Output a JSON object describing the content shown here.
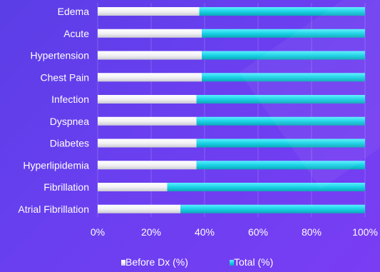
{
  "chart_data": {
    "type": "bar",
    "orientation": "horizontal",
    "stacked": "percent",
    "categories": [
      "Edema",
      "Acute",
      "Hypertension",
      "Chest Pain",
      "Infection",
      "Dyspnea",
      "Diabetes",
      "Hyperlipidemia",
      "Fibrillation",
      "Atrial Fibrillation"
    ],
    "series": [
      {
        "name": "Before Dx (%)",
        "color": "#f0f0f4",
        "values": [
          38,
          39,
          39,
          39,
          37,
          37,
          37,
          37,
          26,
          31
        ]
      },
      {
        "name": "Total (%)",
        "color": "#19d3e6",
        "values": [
          62,
          61,
          61,
          61,
          63,
          63,
          63,
          63,
          74,
          69
        ]
      }
    ],
    "xlim": [
      0,
      100
    ],
    "x_ticks": [
      "0%",
      "20%",
      "40%",
      "60%",
      "80%",
      "100%"
    ],
    "grid": true,
    "legend": "bottom",
    "background": "#6341ee"
  }
}
